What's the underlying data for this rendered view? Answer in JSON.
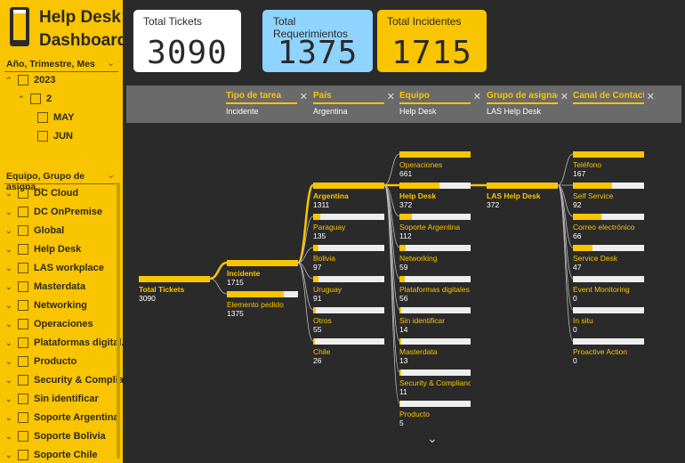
{
  "app": {
    "title_line1": "Help Desk",
    "title_line2": "Dashboard"
  },
  "colors": {
    "accent": "#f9c400",
    "blue_card": "#8fd3ff",
    "dark_bg": "#2b2a2a",
    "filter_bar": "#6b6a6a"
  },
  "slicer_date": {
    "header": "Año, Trimestre, Mes",
    "year": "2023",
    "quarter": "2",
    "months": [
      "MAY",
      "JUN"
    ]
  },
  "slicer_team": {
    "header": "Equipo, Grupo de asigna...",
    "items": [
      "DC Cloud",
      "DC OnPremise",
      "Global",
      "Help Desk",
      "LAS workplace",
      "Masterdata",
      "Networking",
      "Operaciones",
      "Plataformas digital...",
      "Producto",
      "Security & Complia...",
      "Sin identificar",
      "Soporte Argentina",
      "Soporte Bolivia",
      "Soporte Chile"
    ]
  },
  "cards": [
    {
      "label": "Total Tickets",
      "value": "3090"
    },
    {
      "label": "Total Requerimientos",
      "value": "1375"
    },
    {
      "label": "Total Incidentes",
      "value": "1715"
    }
  ],
  "filters": [
    {
      "title": "Tipo de tarea",
      "value": "Incidente"
    },
    {
      "title": "País",
      "value": "Argentina"
    },
    {
      "title": "Equipo",
      "value": "Help Desk"
    },
    {
      "title": "Grupo de asignac...",
      "value": "LAS Help Desk"
    },
    {
      "title": "Canal de Contacto",
      "value": ""
    }
  ],
  "tree": {
    "root": {
      "label": "Total Tickets",
      "value": 3090
    },
    "tipo": [
      {
        "label": "Incidente",
        "value": 1715
      },
      {
        "label": "Elemento pedido",
        "value": 1375
      }
    ],
    "pais": [
      {
        "label": "Argentina",
        "value": 1311
      },
      {
        "label": "Paraguay",
        "value": 135
      },
      {
        "label": "Bolivia",
        "value": 97
      },
      {
        "label": "Uruguay",
        "value": 91
      },
      {
        "label": "Otros",
        "value": 55
      },
      {
        "label": "Chile",
        "value": 26
      }
    ],
    "equipo": [
      {
        "label": "Operaciones",
        "value": 661
      },
      {
        "label": "Help Desk",
        "value": 372
      },
      {
        "label": "Soporte Argentina",
        "value": 112
      },
      {
        "label": "Networking",
        "value": 59
      },
      {
        "label": "Plataformas digitales t...",
        "value": 56
      },
      {
        "label": "Sin identificar",
        "value": 14
      },
      {
        "label": "Masterdata",
        "value": 13
      },
      {
        "label": "Security & Compliance",
        "value": 11
      },
      {
        "label": "Producto",
        "value": 5
      }
    ],
    "grupo": [
      {
        "label": "LAS Help Desk",
        "value": 372
      }
    ],
    "canal": [
      {
        "label": "Teléfono",
        "value": 167
      },
      {
        "label": "Self Service",
        "value": 92
      },
      {
        "label": "Correo electrónico",
        "value": 66
      },
      {
        "label": "Service Desk",
        "value": 47
      },
      {
        "label": "Event Monitoring",
        "value": 0
      },
      {
        "label": "In situ",
        "value": 0
      },
      {
        "label": "Proactive Action",
        "value": 0
      }
    ]
  },
  "icons": {
    "close": "close-icon",
    "chevron_down": "chevron-down-icon",
    "caret": "caret-icon"
  }
}
